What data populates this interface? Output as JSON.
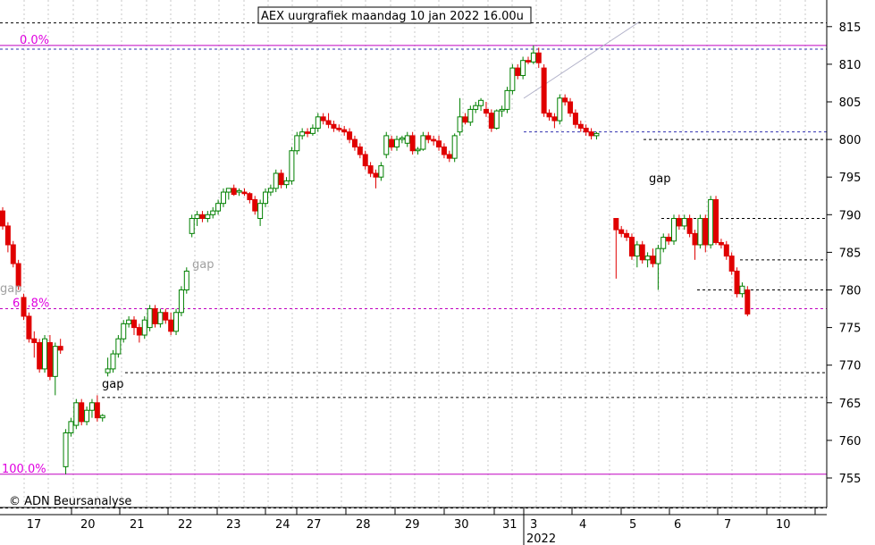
{
  "chart_data": {
    "type": "candlestick",
    "title": "AEX uurgrafiek maandag 10 jan 2022 16.00u",
    "copyright": "© ADN Beursanalyse",
    "ylim": [
      750,
      818
    ],
    "yticks": [
      755,
      760,
      765,
      770,
      775,
      780,
      785,
      790,
      795,
      800,
      805,
      810,
      815
    ],
    "x_labels": [
      "17",
      "20",
      "21",
      "22",
      "23",
      "24",
      "27",
      "28",
      "29",
      "30",
      "31",
      "3",
      "4",
      "5",
      "6",
      "7",
      "10"
    ],
    "year_label": "2022",
    "grid": "dotted-vertical",
    "fib_levels": [
      {
        "label": "0.0%",
        "value": 812.5
      },
      {
        "label": "61.8%",
        "value": 777.5
      },
      {
        "label": "100.0%",
        "value": 755.5
      }
    ],
    "support_resistance": [
      815.5,
      812.0,
      801.0,
      800.0,
      789.5,
      784.0,
      780.0,
      769.0,
      765.7,
      751.0
    ],
    "gap_annotations": [
      {
        "label": "gap",
        "color": "#000000"
      },
      {
        "label": "gap",
        "color": "#a0a0a0"
      },
      {
        "label": "gap",
        "color": "#a0a0a0"
      },
      {
        "label": "gap",
        "color": "#000000"
      }
    ],
    "candles": [
      [
        790.5,
        791,
        788,
        788.5
      ],
      [
        788.5,
        789,
        785,
        786
      ],
      [
        786,
        786.5,
        783,
        783.5
      ],
      [
        783.5,
        784,
        780,
        780.5
      ],
      [
        779,
        779.5,
        776,
        776.5
      ],
      [
        776.5,
        777,
        773,
        773.5
      ],
      [
        773.5,
        774.5,
        771,
        773
      ],
      [
        773,
        773.5,
        769,
        769.5
      ],
      [
        769.5,
        774,
        769,
        773.5
      ],
      [
        773,
        774,
        768,
        768.5
      ],
      [
        768.5,
        773,
        766,
        772.5
      ],
      [
        772.5,
        773.5,
        771.5,
        772
      ],
      [
        756.5,
        761.5,
        755.5,
        761
      ],
      [
        761,
        763,
        760.5,
        762.5
      ],
      [
        762,
        765.5,
        761.5,
        765
      ],
      [
        765,
        765.5,
        762,
        762.5
      ],
      [
        762.5,
        764.5,
        762,
        764
      ],
      [
        764,
        765.5,
        763,
        765
      ],
      [
        765,
        766,
        762.5,
        763
      ],
      [
        763,
        763.5,
        762.5,
        763.3
      ],
      [
        769,
        771,
        768.5,
        769.5
      ],
      [
        769.5,
        772,
        769,
        771.5
      ],
      [
        771.5,
        774,
        771,
        773.5
      ],
      [
        773.5,
        776,
        773,
        775.5
      ],
      [
        775.5,
        776.5,
        775,
        776
      ],
      [
        776,
        776.5,
        774,
        775
      ],
      [
        775,
        775.5,
        773,
        774
      ],
      [
        774,
        776.5,
        773.5,
        776
      ],
      [
        775,
        778,
        774.5,
        777.5
      ],
      [
        777.5,
        778,
        775,
        775.5
      ],
      [
        775.5,
        777.5,
        775,
        777
      ],
      [
        777,
        777.5,
        775.5,
        776
      ],
      [
        776,
        777,
        774,
        774.5
      ],
      [
        774.5,
        777.5,
        774,
        777
      ],
      [
        777,
        780.5,
        776.5,
        780
      ],
      [
        780,
        783,
        779.5,
        782.5
      ],
      [
        787.5,
        790,
        787,
        789.5
      ],
      [
        789.5,
        790.5,
        788.5,
        790
      ],
      [
        790,
        790.5,
        789,
        789.5
      ],
      [
        789.5,
        790.5,
        789,
        790
      ],
      [
        790,
        791,
        789.5,
        790.5
      ],
      [
        790.5,
        792,
        790,
        791.5
      ],
      [
        791.5,
        793.5,
        791,
        793
      ],
      [
        793,
        793.5,
        792,
        793.5
      ],
      [
        793.5,
        794,
        792.5,
        792.7
      ],
      [
        793,
        793.5,
        792.5,
        793.2
      ],
      [
        793,
        793.5,
        792.5,
        792.8
      ],
      [
        792.8,
        793,
        791.5,
        792
      ],
      [
        792,
        792.5,
        790,
        790.5
      ],
      [
        789.5,
        792,
        788.5,
        791.5
      ],
      [
        791.5,
        793.5,
        791,
        793
      ],
      [
        793,
        794,
        792.5,
        793.5
      ],
      [
        793.5,
        796,
        793,
        795.5
      ],
      [
        795.5,
        796,
        793.5,
        794
      ],
      [
        794,
        795,
        793.5,
        794.5
      ],
      [
        794.5,
        799,
        794,
        798.5
      ],
      [
        798.5,
        801,
        798,
        800.5
      ],
      [
        800.5,
        801.5,
        800,
        801
      ],
      [
        801,
        801.5,
        800.3,
        800.8
      ],
      [
        800.8,
        802,
        800.5,
        801.5
      ],
      [
        801.5,
        803.5,
        801,
        803
      ],
      [
        803,
        803.5,
        802,
        802.5
      ],
      [
        802.5,
        803.5,
        801.5,
        802
      ],
      [
        802,
        802.5,
        801,
        801.5
      ],
      [
        801.5,
        802,
        801,
        801.3
      ],
      [
        801.3,
        801.8,
        800.5,
        801
      ],
      [
        801,
        801.5,
        799.5,
        800
      ],
      [
        800,
        800.5,
        798.5,
        799
      ],
      [
        799,
        799.5,
        797.5,
        798
      ],
      [
        798,
        798.5,
        796,
        796.5
      ],
      [
        796.5,
        797,
        795,
        795.5
      ],
      [
        795.5,
        796,
        793.5,
        795
      ],
      [
        795,
        797,
        794.5,
        796.5
      ],
      [
        798,
        801,
        797.5,
        800.5
      ],
      [
        800,
        800.5,
        798.5,
        799
      ],
      [
        799,
        800.5,
        798.5,
        800
      ],
      [
        800,
        800.5,
        799.5,
        800.2
      ],
      [
        799.5,
        801,
        799,
        800.5
      ],
      [
        800.5,
        801,
        798,
        798.5
      ],
      [
        798.5,
        799,
        798,
        798.7
      ],
      [
        798.7,
        801,
        798.5,
        800.5
      ],
      [
        800.5,
        801,
        799.5,
        800
      ],
      [
        800,
        800.5,
        799.2,
        799.8
      ],
      [
        799.8,
        800.5,
        798.5,
        799
      ],
      [
        799,
        799.5,
        797.5,
        798
      ],
      [
        798,
        798.5,
        797,
        797.5
      ],
      [
        797.5,
        800.8,
        797,
        800.5
      ],
      [
        801,
        805.5,
        800.5,
        803
      ],
      [
        803,
        803.5,
        802,
        802.3
      ],
      [
        802.3,
        804.5,
        801.8,
        804
      ],
      [
        804,
        805,
        803.5,
        804.5
      ],
      [
        804.5,
        805.5,
        803.8,
        805.2
      ],
      [
        804,
        805,
        803,
        803.5
      ],
      [
        803.5,
        804,
        801,
        801.5
      ],
      [
        801.5,
        804,
        801.3,
        803.8
      ],
      [
        803.8,
        804.5,
        803,
        804
      ],
      [
        804,
        807,
        803.5,
        806.5
      ],
      [
        806.5,
        810,
        806,
        809.5
      ],
      [
        809.5,
        810,
        808,
        808.5
      ],
      [
        808.5,
        811,
        808,
        810.5
      ],
      [
        810.5,
        811,
        810,
        810.3
      ],
      [
        810.3,
        812.5,
        810,
        811.5
      ],
      [
        811.5,
        812.2,
        809.5,
        810.2
      ],
      [
        809.5,
        810,
        803,
        803.5
      ],
      [
        803.5,
        804,
        802.5,
        803
      ],
      [
        803,
        803.5,
        801.5,
        802.5
      ],
      [
        802.5,
        806,
        802,
        805.5
      ],
      [
        805.5,
        806,
        804.5,
        805
      ],
      [
        805,
        805.5,
        803,
        803.5
      ],
      [
        803.5,
        804,
        801.5,
        802
      ],
      [
        802,
        802.5,
        801,
        801.5
      ],
      [
        801.5,
        802,
        800.5,
        801
      ],
      [
        801,
        801.5,
        800,
        800.5
      ],
      [
        800.5,
        801,
        800,
        800.8
      ],
      [
        789.5,
        789.5,
        781.5,
        788
      ],
      [
        788,
        788.5,
        787,
        787.5
      ],
      [
        787.5,
        788,
        786.5,
        787
      ],
      [
        787,
        787.5,
        784,
        784.5
      ],
      [
        784.5,
        786.5,
        783,
        786
      ],
      [
        786,
        786.5,
        783.5,
        784
      ],
      [
        784,
        785,
        783,
        784.5
      ],
      [
        784.5,
        785.5,
        783,
        783.5
      ],
      [
        783.5,
        786,
        780,
        785.5
      ],
      [
        785.5,
        787.5,
        785,
        787
      ],
      [
        787,
        787.5,
        786,
        786.5
      ],
      [
        786.5,
        790,
        786,
        789.5
      ],
      [
        789.5,
        790,
        788,
        788.5
      ],
      [
        788.5,
        790,
        788,
        789.5
      ],
      [
        789.5,
        790,
        787,
        787.5
      ],
      [
        787.5,
        788,
        784,
        786
      ],
      [
        786,
        790,
        785.5,
        789.5
      ],
      [
        789.5,
        790,
        785,
        786
      ],
      [
        786,
        792.5,
        785.5,
        792
      ],
      [
        792,
        792.5,
        786,
        786.3
      ],
      [
        786.3,
        786.8,
        785.5,
        786
      ],
      [
        786,
        786.5,
        784,
        784.5
      ],
      [
        784.5,
        785,
        782,
        782.5
      ],
      [
        782.5,
        783,
        779,
        779.5
      ],
      [
        779.5,
        781,
        779,
        780.5
      ],
      [
        780,
        780.5,
        776.5,
        776.8
      ]
    ]
  }
}
